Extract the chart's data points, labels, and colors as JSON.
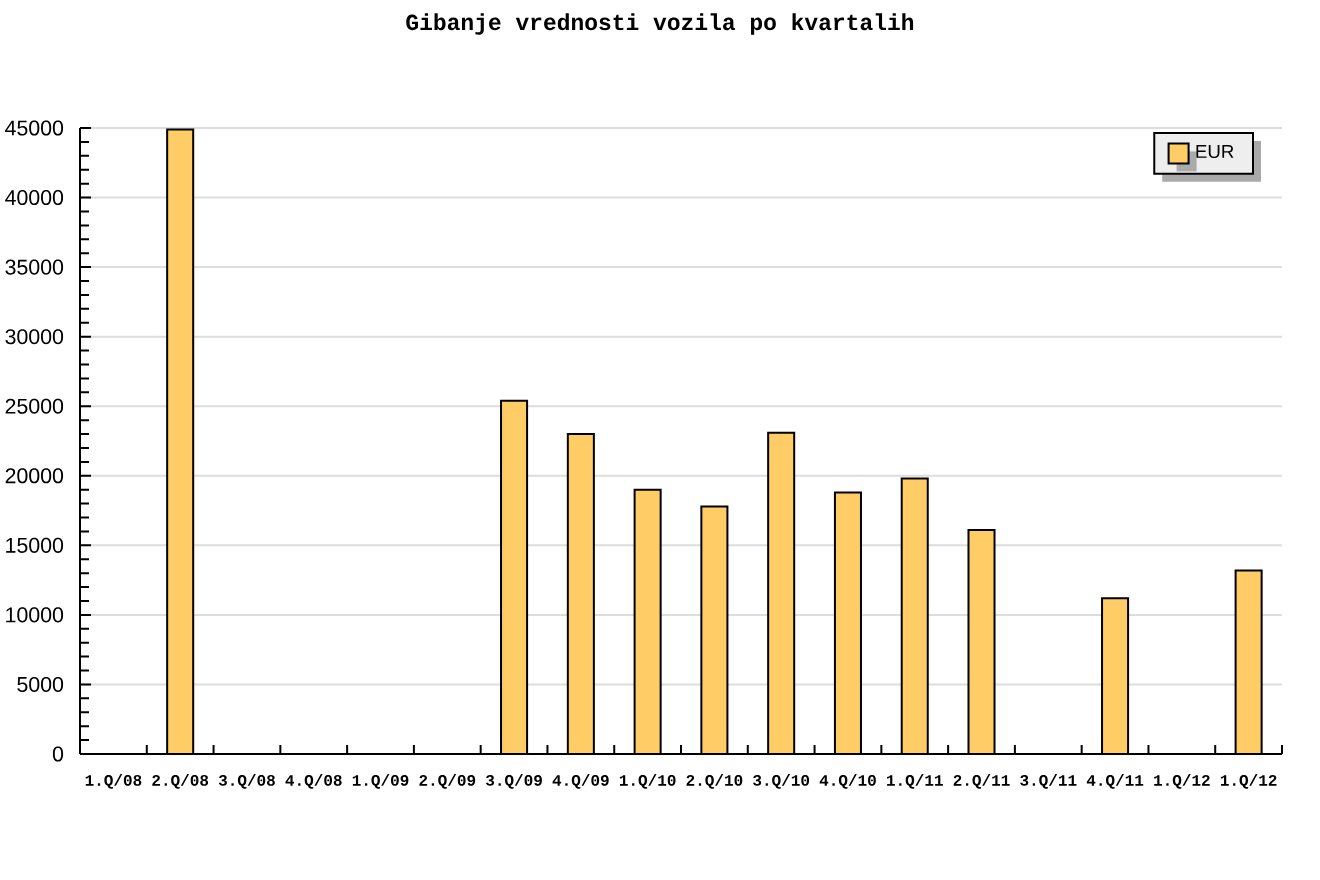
{
  "chart_data": {
    "type": "bar",
    "title": "Gibanje vrednosti vozila po kvartalih",
    "categories": [
      "1.Q/08",
      "2.Q/08",
      "3.Q/08",
      "4.Q/08",
      "1.Q/09",
      "2.Q/09",
      "3.Q/09",
      "4.Q/09",
      "1.Q/10",
      "2.Q/10",
      "3.Q/10",
      "4.Q/10",
      "1.Q/11",
      "2.Q/11",
      "3.Q/11",
      "4.Q/11",
      "1.Q/12",
      "1.Q/12"
    ],
    "series": [
      {
        "name": "EUR",
        "color": "#ffcc66",
        "values": [
          null,
          44900,
          null,
          null,
          null,
          null,
          25400,
          23000,
          19000,
          17800,
          23100,
          18800,
          19800,
          16100,
          null,
          11200,
          null,
          13200
        ]
      }
    ],
    "ylim": [
      0,
      45000
    ],
    "yticks": [
      0,
      5000,
      10000,
      15000,
      20000,
      25000,
      30000,
      35000,
      40000,
      45000
    ],
    "grid": "y",
    "legend": "top right"
  }
}
